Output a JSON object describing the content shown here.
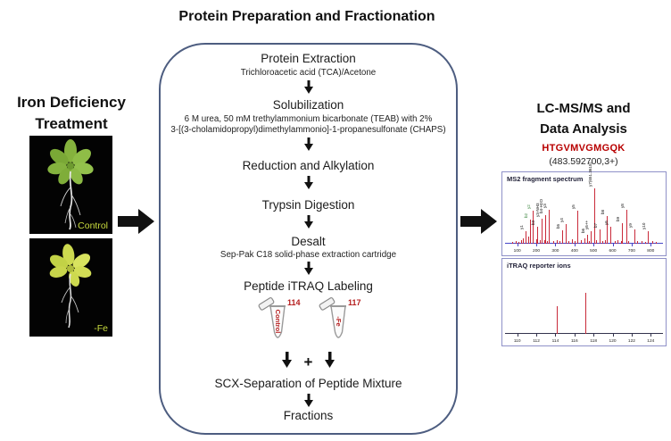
{
  "header": {
    "title": "Protein Preparation and Fractionation"
  },
  "left": {
    "title_line1": "Iron Deficiency",
    "title_line2": "Treatment",
    "images": [
      {
        "label": "Control",
        "label_color": "#c9dc3e"
      },
      {
        "label": "-Fe",
        "label_color": "#c9dc3e"
      }
    ]
  },
  "flow": {
    "step1_title": "Protein  Extraction",
    "step1_sub": "Trichloroacetic acid (TCA)/Acetone",
    "step2_title": "Solubilization",
    "step2_sub1": "6 M urea, 50 mM trethylammonium bicarbonate (TEAB) with 2%",
    "step2_sub2": "3-[(3-cholamidopropyl)dimethylammonio]-1-propanesulfonate (CHAPS)",
    "step3_title": "Reduction and Alkylation",
    "step4_title": "Trypsin Digestion",
    "step5_title": "Desalt",
    "step5_sub": "Sep-Pak C18 solid-phase extraction cartridge",
    "step6_title": "Peptide iTRAQ Labeling",
    "tubes": [
      {
        "tag": "114",
        "label": "Control",
        "tag_color": "#b51d1d"
      },
      {
        "tag": "117",
        "label": "-Fe",
        "tag_color": "#b51d1d"
      }
    ],
    "plus_sign": "+",
    "step7_title": "SCX-Separation of Peptide Mixture",
    "step8_title": "Fractions"
  },
  "right": {
    "title_line1": "LC-MS/MS and",
    "title_line2": "Data Analysis",
    "peptide": "HTGVMVGMGQK",
    "peptide_color": "#b80000",
    "precursor": "(483.592700,3+)"
  },
  "chart_data": [
    {
      "type": "bar",
      "subtype": "mass-spectrum",
      "title": "MS2 fragment spectrum",
      "bar_color": "#c92a3a",
      "axis_color": "#4646c8",
      "xticks": [
        "100",
        "200",
        "300",
        "400",
        "500",
        "600",
        "700",
        "800"
      ],
      "ylabel": "",
      "xlabel": "",
      "peaks": [
        {
          "x": 0.115,
          "h": 0.22,
          "label": "y1"
        },
        {
          "x": 0.145,
          "h": 0.42,
          "label": "b2",
          "lc": "#2e7d32"
        },
        {
          "x": 0.165,
          "h": 0.58,
          "label": "y2",
          "lc": "#2e7d32"
        },
        {
          "x": 0.195,
          "h": 0.3,
          "label": "b3"
        },
        {
          "x": 0.22,
          "h": 0.44,
          "label": "y3-NH3"
        },
        {
          "x": 0.245,
          "h": 0.5,
          "label": "b4-H2O"
        },
        {
          "x": 0.27,
          "h": 0.6,
          "label": "y3"
        },
        {
          "x": 0.355,
          "h": 0.24,
          "label": "b5"
        },
        {
          "x": 0.38,
          "h": 0.34,
          "label": "y4"
        },
        {
          "x": 0.455,
          "h": 0.58,
          "label": "y5"
        },
        {
          "x": 0.52,
          "h": 0.16,
          "label": "b6"
        },
        {
          "x": 0.545,
          "h": 0.22,
          "label": "y6++"
        },
        {
          "x": 0.565,
          "h": 0.97,
          "label": "y7(651.3618)"
        },
        {
          "x": 0.6,
          "h": 0.25,
          "label": "b7"
        },
        {
          "x": 0.65,
          "h": 0.48,
          "label": "b8"
        },
        {
          "x": 0.675,
          "h": 0.3,
          "label": "y6"
        },
        {
          "x": 0.75,
          "h": 0.36,
          "label": "b9"
        },
        {
          "x": 0.775,
          "h": 0.6,
          "label": "y8"
        },
        {
          "x": 0.83,
          "h": 0.25,
          "label": "y9"
        },
        {
          "x": 0.92,
          "h": 0.22,
          "label": "y10"
        }
      ],
      "noise": [
        [
          0.03,
          0.03
        ],
        [
          0.05,
          0.05
        ],
        [
          0.07,
          0.03
        ],
        [
          0.09,
          0.06
        ],
        [
          0.1,
          0.1
        ],
        [
          0.135,
          0.12
        ],
        [
          0.19,
          0.08
        ],
        [
          0.21,
          0.06
        ],
        [
          0.24,
          0.07
        ],
        [
          0.26,
          0.05
        ],
        [
          0.3,
          0.04
        ],
        [
          0.32,
          0.06
        ],
        [
          0.34,
          0.05
        ],
        [
          0.4,
          0.05
        ],
        [
          0.42,
          0.08
        ],
        [
          0.44,
          0.04
        ],
        [
          0.48,
          0.06
        ],
        [
          0.5,
          0.09
        ],
        [
          0.53,
          0.05
        ],
        [
          0.58,
          0.06
        ],
        [
          0.62,
          0.05
        ],
        [
          0.64,
          0.07
        ],
        [
          0.7,
          0.04
        ],
        [
          0.72,
          0.06
        ],
        [
          0.74,
          0.05
        ],
        [
          0.79,
          0.04
        ],
        [
          0.85,
          0.05
        ],
        [
          0.88,
          0.04
        ],
        [
          0.9,
          0.03
        ],
        [
          0.95,
          0.04
        ],
        [
          0.97,
          0.03
        ]
      ]
    },
    {
      "type": "bar",
      "subtype": "mass-spectrum",
      "title": "iTRAQ reporter ions",
      "bar_color": "#c92a3a",
      "axis_color": "#33334d",
      "xmin": 109,
      "xmax": 125,
      "xticks": [
        110,
        112,
        114,
        116,
        118,
        120,
        122,
        124
      ],
      "peaks": [
        {
          "mz": 114.1,
          "h": 0.45,
          "label": ""
        },
        {
          "mz": 117.1,
          "h": 0.68,
          "label": ""
        }
      ]
    }
  ]
}
